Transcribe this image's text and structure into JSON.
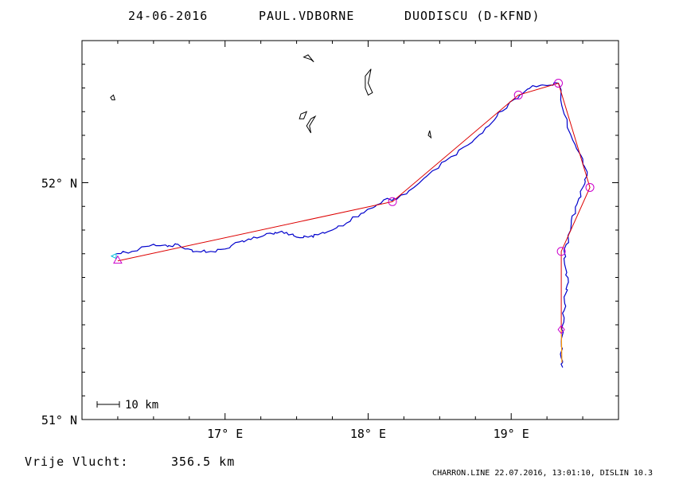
{
  "title": {
    "date": "24-06-2016",
    "pilot": "PAUL.VDBORNE",
    "glider": "DUODISCU (D-KFND)"
  },
  "footer": {
    "distance_label": "Vrije Vlucht:",
    "distance_value": "356.5 km",
    "credit": "CHARRON.LINE 22.07.2016, 13:01:10, DISLIN 10.3"
  },
  "scale_bar": {
    "label": "10 km"
  },
  "colors": {
    "frame": "#000000",
    "track": "#0000cc",
    "task": "#dd0000",
    "turnpoint": "#cc00cc",
    "landing_leg": "#ff9900",
    "start_marker": "#00bbdd",
    "coast": "#000000"
  },
  "map": {
    "lon_range": [
      16.0,
      19.75
    ],
    "lat_range": [
      51.0,
      52.6
    ],
    "x_ticks": [
      {
        "value": 17.0,
        "label": "17° E"
      },
      {
        "value": 18.0,
        "label": "18° E"
      },
      {
        "value": 19.0,
        "label": "19° E"
      }
    ],
    "y_ticks": [
      {
        "value": 51.0,
        "label": "51° N"
      },
      {
        "value": 52.0,
        "label": "52° N"
      }
    ],
    "task_points": [
      {
        "lon": 16.25,
        "lat": 51.67,
        "type": "start"
      },
      {
        "lon": 18.17,
        "lat": 51.92,
        "type": "turnpoint"
      },
      {
        "lon": 19.05,
        "lat": 52.37,
        "type": "turnpoint"
      },
      {
        "lon": 19.33,
        "lat": 52.42,
        "type": "turnpoint"
      },
      {
        "lon": 19.55,
        "lat": 51.98,
        "type": "turnpoint"
      },
      {
        "lon": 19.35,
        "lat": 51.71,
        "type": "turnpoint"
      },
      {
        "lon": 19.35,
        "lat": 51.38,
        "type": "finish"
      }
    ],
    "track": [
      [
        16.24,
        51.7
      ],
      [
        16.35,
        51.71
      ],
      [
        16.5,
        51.74
      ],
      [
        16.6,
        51.73
      ],
      [
        16.66,
        51.74
      ],
      [
        16.72,
        51.72
      ],
      [
        16.8,
        51.71
      ],
      [
        16.9,
        51.71
      ],
      [
        17.0,
        51.72
      ],
      [
        17.1,
        51.75
      ],
      [
        17.18,
        51.76
      ],
      [
        17.28,
        51.78
      ],
      [
        17.35,
        51.79
      ],
      [
        17.43,
        51.79
      ],
      [
        17.5,
        51.77
      ],
      [
        17.58,
        51.77
      ],
      [
        17.65,
        51.78
      ],
      [
        17.75,
        51.8
      ],
      [
        17.85,
        51.83
      ],
      [
        17.95,
        51.87
      ],
      [
        18.05,
        51.9
      ],
      [
        18.12,
        51.93
      ],
      [
        18.2,
        51.93
      ],
      [
        18.32,
        51.98
      ],
      [
        18.45,
        52.05
      ],
      [
        18.58,
        52.11
      ],
      [
        18.7,
        52.16
      ],
      [
        18.8,
        52.21
      ],
      [
        18.9,
        52.28
      ],
      [
        18.98,
        52.33
      ],
      [
        19.06,
        52.37
      ],
      [
        19.15,
        52.41
      ],
      [
        19.25,
        52.41
      ],
      [
        19.33,
        52.42
      ],
      [
        19.37,
        52.29
      ],
      [
        19.43,
        52.18
      ],
      [
        19.5,
        52.1
      ],
      [
        19.53,
        52.03
      ],
      [
        19.5,
        51.98
      ],
      [
        19.46,
        51.91
      ],
      [
        19.42,
        51.84
      ],
      [
        19.4,
        51.76
      ],
      [
        19.37,
        51.71
      ],
      [
        19.38,
        51.64
      ],
      [
        19.4,
        51.58
      ],
      [
        19.38,
        51.53
      ],
      [
        19.37,
        51.46
      ],
      [
        19.36,
        51.4
      ],
      [
        19.35,
        51.33
      ],
      [
        19.35,
        51.26
      ],
      [
        19.36,
        51.22
      ]
    ],
    "coast_shapes": [
      [
        [
          16.2,
          52.36
        ],
        [
          16.22,
          52.37
        ],
        [
          16.23,
          52.35
        ],
        [
          16.21,
          52.35
        ]
      ],
      [
        [
          17.55,
          52.53
        ],
        [
          17.6,
          52.52
        ],
        [
          17.62,
          52.51
        ],
        [
          17.58,
          52.54
        ]
      ],
      [
        [
          17.98,
          52.45
        ],
        [
          18.02,
          52.48
        ],
        [
          18.0,
          52.42
        ],
        [
          18.03,
          52.38
        ],
        [
          18.0,
          52.37
        ],
        [
          17.98,
          52.4
        ]
      ],
      [
        [
          17.53,
          52.29
        ],
        [
          17.57,
          52.3
        ],
        [
          17.55,
          52.27
        ],
        [
          17.52,
          52.27
        ]
      ],
      [
        [
          17.6,
          52.27
        ],
        [
          17.63,
          52.28
        ],
        [
          17.59,
          52.24
        ],
        [
          17.6,
          52.21
        ],
        [
          17.57,
          52.24
        ]
      ],
      [
        [
          18.42,
          52.2
        ],
        [
          18.43,
          52.22
        ],
        [
          18.44,
          52.19
        ]
      ]
    ]
  }
}
